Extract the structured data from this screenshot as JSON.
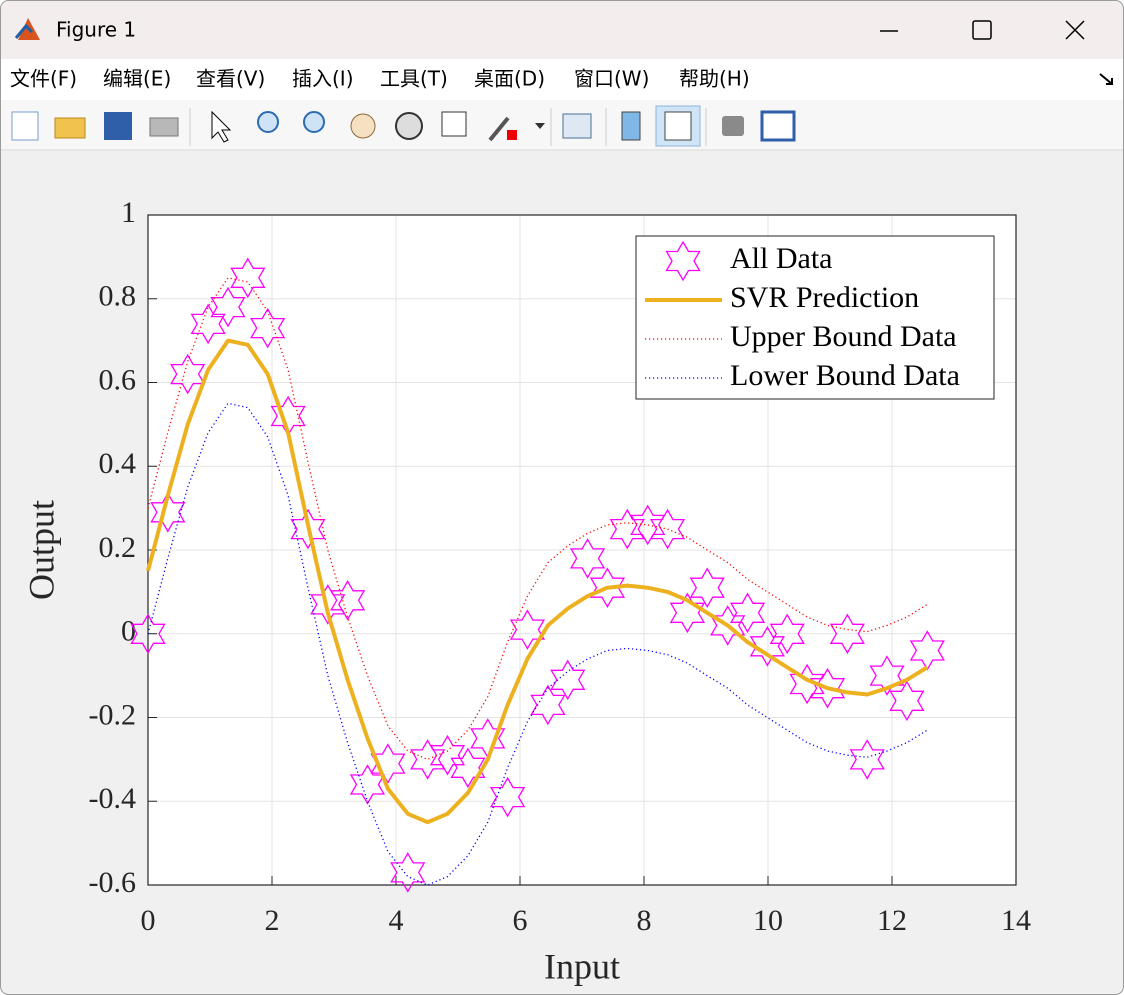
{
  "window": {
    "title": "Figure 1",
    "menu": [
      "文件(F)",
      "编辑(E)",
      "查看(V)",
      "插入(I)",
      "工具(T)",
      "桌面(D)",
      "窗口(W)",
      "帮助(H)"
    ]
  },
  "chart_data": {
    "type": "line",
    "x_label": "Input",
    "y_label": "Output",
    "x": [
      0,
      0.32,
      0.64,
      0.97,
      1.29,
      1.61,
      1.93,
      2.26,
      2.58,
      2.9,
      3.22,
      3.54,
      3.87,
      4.19,
      4.51,
      4.83,
      5.16,
      5.48,
      5.8,
      6.12,
      6.45,
      6.77,
      7.09,
      7.41,
      7.73,
      8.06,
      8.38,
      8.7,
      9.02,
      9.35,
      9.67,
      9.99,
      10.31,
      10.63,
      10.96,
      11.28,
      11.6,
      11.92,
      12.24,
      12.57
    ],
    "series": [
      {
        "name": "All Data",
        "color": "#ff00ff",
        "style": "marker",
        "values": [
          0,
          0.29,
          0.62,
          0.74,
          0.78,
          0.85,
          0.73,
          0.52,
          0.25,
          0.07,
          0.08,
          -0.36,
          -0.31,
          -0.57,
          -0.3,
          -0.29,
          -0.32,
          -0.25,
          -0.39,
          0.01,
          -0.17,
          -0.11,
          0.18,
          0.11,
          0.25,
          0.26,
          0.25,
          0.05,
          0.11,
          0.02,
          0.05,
          -0.03,
          0,
          -0.12,
          -0.13,
          0,
          -0.3,
          -0.1,
          -0.16,
          -0.04
        ]
      },
      {
        "name": "SVR Prediction",
        "color": "#edb120",
        "style": "solid",
        "values": [
          0.15,
          0.33,
          0.5,
          0.63,
          0.7,
          0.69,
          0.62,
          0.48,
          0.26,
          0.05,
          -0.11,
          -0.25,
          -0.37,
          -0.43,
          -0.45,
          -0.43,
          -0.38,
          -0.3,
          -0.17,
          -0.06,
          0.02,
          0.06,
          0.09,
          0.11,
          0.115,
          0.11,
          0.1,
          0.08,
          0.05,
          0.02,
          -0.02,
          -0.05,
          -0.08,
          -0.11,
          -0.13,
          -0.14,
          -0.145,
          -0.13,
          -0.11,
          -0.08
        ]
      },
      {
        "name": "Upper Bound Data",
        "color": "#ff0000",
        "style": "dotted",
        "values": [
          0.3,
          0.48,
          0.65,
          0.78,
          0.85,
          0.84,
          0.77,
          0.63,
          0.41,
          0.2,
          0.04,
          -0.1,
          -0.22,
          -0.28,
          -0.3,
          -0.28,
          -0.23,
          -0.15,
          -0.02,
          0.09,
          0.17,
          0.21,
          0.24,
          0.26,
          0.265,
          0.26,
          0.25,
          0.23,
          0.2,
          0.17,
          0.13,
          0.1,
          0.07,
          0.04,
          0.02,
          0.01,
          0.005,
          0.02,
          0.04,
          0.07
        ]
      },
      {
        "name": "Lower Bound Data",
        "color": "#0000ff",
        "style": "dotted",
        "values": [
          0.0,
          0.18,
          0.35,
          0.48,
          0.55,
          0.54,
          0.47,
          0.33,
          0.11,
          -0.1,
          -0.26,
          -0.4,
          -0.52,
          -0.58,
          -0.6,
          -0.58,
          -0.53,
          -0.45,
          -0.32,
          -0.21,
          -0.13,
          -0.09,
          -0.06,
          -0.04,
          -0.035,
          -0.04,
          -0.05,
          -0.07,
          -0.1,
          -0.13,
          -0.17,
          -0.2,
          -0.23,
          -0.26,
          -0.28,
          -0.29,
          -0.295,
          -0.28,
          -0.26,
          -0.23
        ]
      }
    ],
    "xlim": [
      0,
      14
    ],
    "xticks": [
      0,
      2,
      4,
      6,
      8,
      10,
      12,
      14
    ],
    "ylim": [
      -0.6,
      1
    ],
    "yticks": [
      -0.6,
      -0.4,
      -0.2,
      0,
      0.2,
      0.4,
      0.6,
      0.8,
      1
    ],
    "grid": true,
    "legend": "northeast"
  }
}
